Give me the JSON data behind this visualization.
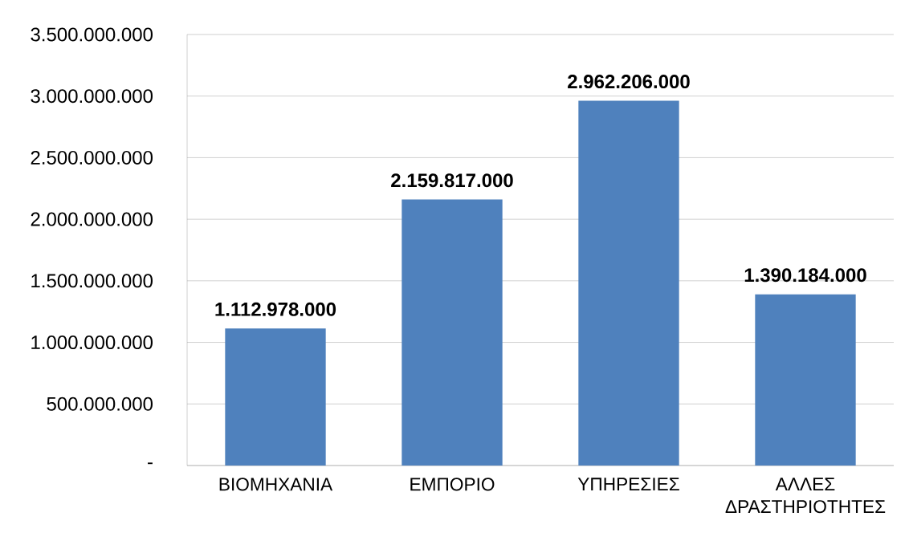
{
  "chart_data": {
    "type": "bar",
    "categories": [
      "ΒΙΟΜΗΧΑΝΙΑ",
      "ΕΜΠΟΡΙΟ",
      "ΥΠΗΡΕΣΙΕΣ",
      "ΑΛΛΕΣ ΔΡΑΣΤΗΡΙΟΤΗΤΕΣ"
    ],
    "values": [
      1112978000,
      2159817000,
      2962206000,
      1390184000
    ],
    "value_labels": [
      "1.112.978.000",
      "2.159.817.000",
      "2.962.206.000",
      "1.390.184.000"
    ],
    "color": "#4f81bd",
    "ylim": [
      0,
      3500000000
    ],
    "yticks": [
      {
        "value": 0,
        "label": "-"
      },
      {
        "value": 500000000,
        "label": "500.000.000"
      },
      {
        "value": 1000000000,
        "label": "1.000.000.000"
      },
      {
        "value": 1500000000,
        "label": "1.500.000.000"
      },
      {
        "value": 2000000000,
        "label": "2.000.000.000"
      },
      {
        "value": 2500000000,
        "label": "2.500.000.000"
      },
      {
        "value": 3000000000,
        "label": "3.000.000.000"
      },
      {
        "value": 3500000000,
        "label": "3.500.000.000"
      }
    ],
    "grid": "y"
  }
}
